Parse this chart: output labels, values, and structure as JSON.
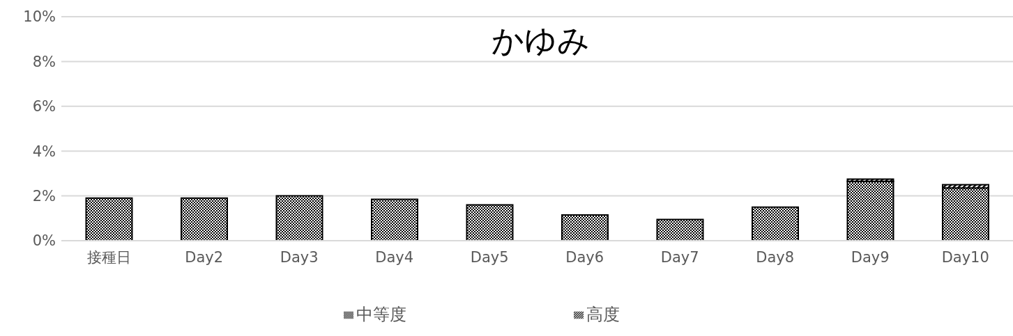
{
  "chart_data": {
    "type": "bar",
    "title": "かゆみ",
    "categories": [
      "接種日",
      "Day2",
      "Day3",
      "Day4",
      "Day5",
      "Day6",
      "Day7",
      "Day8",
      "Day9",
      "Day10"
    ],
    "series": [
      {
        "name": "中等度",
        "color": "#000000",
        "values": [
          1.9,
          1.9,
          2.0,
          1.85,
          1.6,
          1.15,
          0.95,
          1.5,
          2.65,
          2.35
        ]
      },
      {
        "name": "高度",
        "color": "#000000",
        "values": [
          0,
          0,
          0,
          0,
          0,
          0,
          0,
          0,
          0.1,
          0.15
        ]
      }
    ],
    "stacked": true,
    "ylim": [
      0,
      10
    ],
    "yticks": [
      {
        "value": 0,
        "label": "0%"
      },
      {
        "value": 2,
        "label": "2%"
      },
      {
        "value": 4,
        "label": "4%"
      },
      {
        "value": 6,
        "label": "6%"
      },
      {
        "value": 8,
        "label": "8%"
      },
      {
        "value": 10,
        "label": "10%"
      }
    ],
    "grid": "y",
    "legend": "bottom"
  }
}
